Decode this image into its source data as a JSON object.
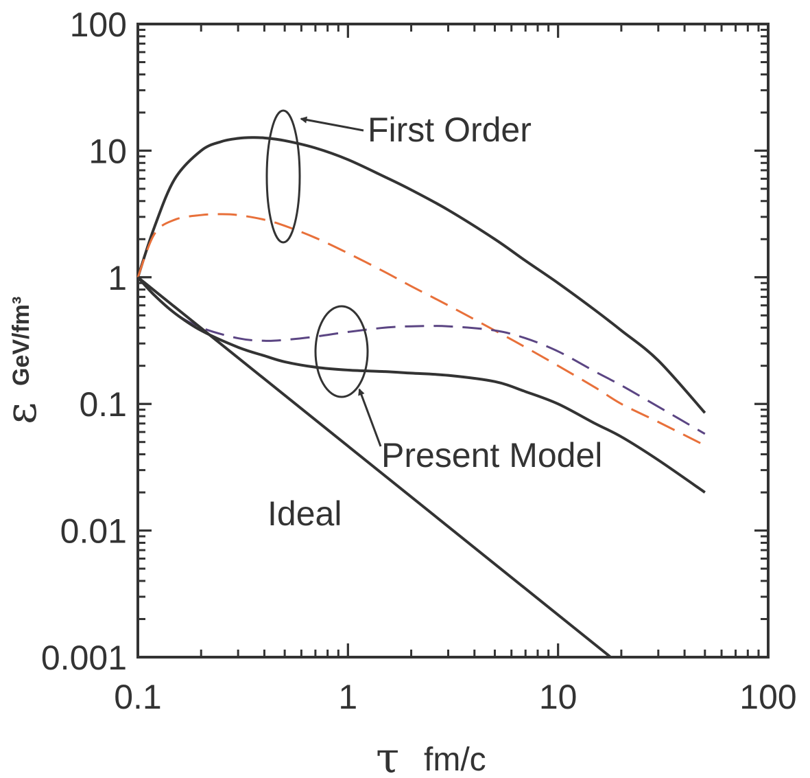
{
  "chart_data": {
    "type": "line",
    "xscale": "log",
    "yscale": "log",
    "xlim": [
      0.1,
      100
    ],
    "ylim": [
      0.001,
      100
    ],
    "xticks": [
      "0.1",
      "1",
      "10",
      "100"
    ],
    "yticks": [
      "0.001",
      "0.01",
      "0.1",
      "1",
      "10",
      "100"
    ],
    "xlabel": {
      "symbol": "τ",
      "unit": "fm/c"
    },
    "ylabel": {
      "symbol": "ε",
      "unit": "GeV/fm³"
    },
    "grid": false,
    "legend": "none",
    "series": [
      {
        "key": "first_order_solid",
        "style": "solid",
        "color": "#333333",
        "x": [
          0.1,
          0.12,
          0.15,
          0.2,
          0.25,
          0.3,
          0.35,
          0.4,
          0.5,
          0.7,
          1,
          1.5,
          2,
          3,
          5,
          7,
          10,
          15,
          20,
          30,
          50
        ],
        "y": [
          1,
          2.5,
          6,
          10,
          11.8,
          12.5,
          12.7,
          12.6,
          12,
          10.5,
          8.5,
          6.2,
          4.9,
          3.4,
          2.0,
          1.35,
          0.9,
          0.55,
          0.38,
          0.22,
          0.085
        ]
      },
      {
        "key": "first_order_dashed",
        "style": "dashed",
        "color": "#e8703a",
        "x": [
          0.1,
          0.12,
          0.15,
          0.2,
          0.25,
          0.3,
          0.4,
          0.5,
          0.7,
          1,
          1.5,
          2,
          3,
          5,
          7,
          10,
          15,
          20,
          30,
          50
        ],
        "y": [
          1,
          2.2,
          2.85,
          3.1,
          3.15,
          3.1,
          2.85,
          2.55,
          2.05,
          1.55,
          1.1,
          0.85,
          0.6,
          0.38,
          0.28,
          0.2,
          0.135,
          0.1,
          0.072,
          0.047
        ]
      },
      {
        "key": "present_model_dashed",
        "style": "dashed",
        "color": "#5b4583",
        "x": [
          0.1,
          0.12,
          0.15,
          0.2,
          0.3,
          0.4,
          0.5,
          0.7,
          1,
          1.5,
          2,
          3,
          5,
          7,
          10,
          15,
          20,
          30,
          50
        ],
        "y": [
          1,
          0.72,
          0.52,
          0.4,
          0.33,
          0.315,
          0.32,
          0.34,
          0.37,
          0.4,
          0.41,
          0.41,
          0.38,
          0.33,
          0.26,
          0.18,
          0.14,
          0.095,
          0.058
        ]
      },
      {
        "key": "present_model_solid",
        "style": "solid",
        "color": "#333333",
        "x": [
          0.1,
          0.12,
          0.15,
          0.2,
          0.3,
          0.4,
          0.5,
          0.7,
          1,
          1.5,
          2,
          3,
          5,
          7,
          10,
          15,
          20,
          30,
          50
        ],
        "y": [
          1,
          0.72,
          0.52,
          0.38,
          0.28,
          0.24,
          0.215,
          0.195,
          0.185,
          0.18,
          0.175,
          0.168,
          0.15,
          0.125,
          0.1,
          0.07,
          0.055,
          0.036,
          0.02
        ]
      },
      {
        "key": "ideal_solid",
        "style": "solid",
        "color": "#333333",
        "x": [
          0.1,
          17.8
        ],
        "y": [
          1,
          0.001
        ]
      }
    ],
    "annotations": [
      {
        "text": "First Order",
        "x": 1.3,
        "y": 13
      },
      {
        "text": "Present Model",
        "x": 1.6,
        "y": 0.042
      },
      {
        "text": "Ideal",
        "x": 0.6,
        "y": 0.012
      }
    ],
    "callouts": [
      {
        "ellipse_center": [
          0.5,
          6.4
        ],
        "arrow_to_label": "First Order"
      },
      {
        "ellipse_center": [
          0.9,
          0.26
        ],
        "arrow_to_label": "Present Model"
      }
    ]
  }
}
